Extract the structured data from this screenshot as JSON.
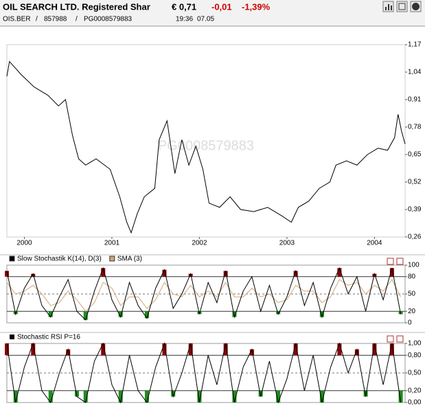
{
  "header": {
    "title": "OIL SEARCH LTD. Registered Shar",
    "price": "€ 0,71",
    "change": "-0,01",
    "change_pct": "-1,39%",
    "exchange": "OIS.BER",
    "separator": "/",
    "wkn": "857988",
    "isin": "PG0008579883",
    "time": "19:36",
    "date": "07.05"
  },
  "chart_data": [
    {
      "type": "line",
      "color": "#000000",
      "x": [
        1999.8,
        1999.83,
        1999.96,
        2000.11,
        2000.27,
        2000.39,
        2000.47,
        2000.55,
        2000.62,
        2000.7,
        2000.82,
        2000.98,
        2001.09,
        2001.17,
        2001.22,
        2001.29,
        2001.37,
        2001.49,
        2001.54,
        2001.63,
        2001.72,
        2001.8,
        2001.88,
        2001.96,
        2002.04,
        2002.11,
        2002.23,
        2002.35,
        2002.47,
        2002.62,
        2002.78,
        2002.94,
        2003.05,
        2003.13,
        2003.25,
        2003.37,
        2003.49,
        2003.56,
        2003.68,
        2003.8,
        2003.92,
        2004.04,
        2004.15,
        2004.23,
        2004.27,
        2004.31,
        2004.35
      ],
      "values": [
        1.02,
        1.09,
        1.03,
        0.97,
        0.93,
        0.88,
        0.91,
        0.74,
        0.63,
        0.6,
        0.63,
        0.58,
        0.45,
        0.33,
        0.28,
        0.37,
        0.45,
        0.49,
        0.72,
        0.81,
        0.56,
        0.72,
        0.6,
        0.69,
        0.58,
        0.42,
        0.4,
        0.45,
        0.39,
        0.38,
        0.4,
        0.36,
        0.33,
        0.4,
        0.43,
        0.49,
        0.52,
        0.6,
        0.62,
        0.6,
        0.65,
        0.68,
        0.67,
        0.73,
        0.84,
        0.76,
        0.7
      ],
      "xlim": [
        1999.8,
        2004.35
      ],
      "xticks": [
        2000,
        2001,
        2002,
        2003,
        2004
      ],
      "ylim": [
        0.26,
        1.17
      ],
      "yticks": [
        {
          "value": 0.26,
          "label": "0,26"
        },
        {
          "value": 0.39,
          "label": "0,39"
        },
        {
          "value": 0.52,
          "label": "0,52"
        },
        {
          "value": 0.65,
          "label": "0,65"
        },
        {
          "value": 0.78,
          "label": "0,78"
        },
        {
          "value": 0.91,
          "label": "0,91"
        },
        {
          "value": 1.04,
          "label": "1,04"
        },
        {
          "value": 1.17,
          "label": "1,17"
        }
      ]
    },
    {
      "type": "line",
      "x": [
        1999.8,
        1999.9,
        2000.0,
        2000.1,
        2000.2,
        2000.3,
        2000.4,
        2000.5,
        2000.6,
        2000.7,
        2000.8,
        2000.9,
        2001.0,
        2001.1,
        2001.2,
        2001.3,
        2001.4,
        2001.5,
        2001.6,
        2001.7,
        2001.8,
        2001.9,
        2002.0,
        2002.1,
        2002.2,
        2002.3,
        2002.4,
        2002.5,
        2002.6,
        2002.7,
        2002.8,
        2002.9,
        2003.0,
        2003.1,
        2003.2,
        2003.3,
        2003.4,
        2003.5,
        2003.6,
        2003.7,
        2003.8,
        2003.9,
        2004.0,
        2004.1,
        2004.2,
        2004.3
      ],
      "series": [
        {
          "name": "Slow Stochastik K(14), D(3)",
          "color": "#000000",
          "values": [
            90,
            15,
            60,
            85,
            30,
            10,
            45,
            75,
            20,
            5,
            55,
            95,
            40,
            10,
            70,
            30,
            8,
            60,
            92,
            25,
            50,
            85,
            15,
            70,
            35,
            90,
            10,
            55,
            80,
            20,
            65,
            15,
            45,
            90,
            30,
            70,
            10,
            60,
            95,
            50,
            80,
            20,
            85,
            40,
            95,
            15
          ]
        },
        {
          "name": "SMA (3)",
          "color": "#d2a679",
          "values": [
            70,
            50,
            55,
            65,
            50,
            30,
            35,
            55,
            40,
            20,
            35,
            70,
            60,
            30,
            45,
            45,
            25,
            40,
            70,
            50,
            45,
            65,
            45,
            55,
            45,
            70,
            45,
            45,
            60,
            45,
            50,
            35,
            40,
            65,
            55,
            55,
            35,
            45,
            75,
            65,
            70,
            50,
            65,
            55,
            75,
            45
          ]
        }
      ],
      "upper_fill": "#8b0000",
      "lower_fill": "#1e8c1e",
      "xlim": [
        1999.8,
        2004.35
      ],
      "ylim": [
        0,
        100
      ],
      "yticks": [
        0,
        20,
        50,
        80,
        100
      ]
    },
    {
      "type": "line",
      "title": "Stochastic RSI P=16",
      "color": "#000000",
      "x": [
        1999.8,
        1999.9,
        2000.0,
        2000.1,
        2000.2,
        2000.3,
        2000.4,
        2000.5,
        2000.6,
        2000.7,
        2000.8,
        2000.9,
        2001.0,
        2001.1,
        2001.2,
        2001.3,
        2001.4,
        2001.5,
        2001.6,
        2001.7,
        2001.8,
        2001.9,
        2002.0,
        2002.1,
        2002.2,
        2002.3,
        2002.4,
        2002.5,
        2002.6,
        2002.7,
        2002.8,
        2002.9,
        2003.0,
        2003.1,
        2003.2,
        2003.3,
        2003.4,
        2003.5,
        2003.6,
        2003.7,
        2003.8,
        2003.9,
        2004.0,
        2004.1,
        2004.2,
        2004.3
      ],
      "values": [
        1.0,
        0.0,
        0.6,
        1.0,
        0.2,
        0.0,
        0.5,
        0.9,
        0.1,
        0.0,
        0.7,
        1.0,
        0.3,
        0.0,
        0.8,
        0.2,
        0.0,
        0.6,
        1.0,
        0.1,
        0.5,
        1.0,
        0.0,
        0.8,
        0.3,
        1.0,
        0.0,
        0.6,
        0.9,
        0.1,
        0.7,
        0.0,
        0.4,
        1.0,
        0.2,
        0.8,
        0.0,
        0.6,
        1.0,
        0.5,
        0.9,
        0.1,
        1.0,
        0.3,
        1.0,
        0.0
      ],
      "upper_fill": "#8b0000",
      "lower_fill": "#1e8c1e",
      "xlim": [
        1999.8,
        2004.35
      ],
      "ylim": [
        0,
        1
      ],
      "yticks": [
        {
          "value": 0,
          "label": "0,00"
        },
        {
          "value": 0.2,
          "label": "0,20"
        },
        {
          "value": 0.5,
          "label": "0,50"
        },
        {
          "value": 0.8,
          "label": "0,80"
        },
        {
          "value": 1,
          "label": "1,00"
        }
      ]
    }
  ]
}
